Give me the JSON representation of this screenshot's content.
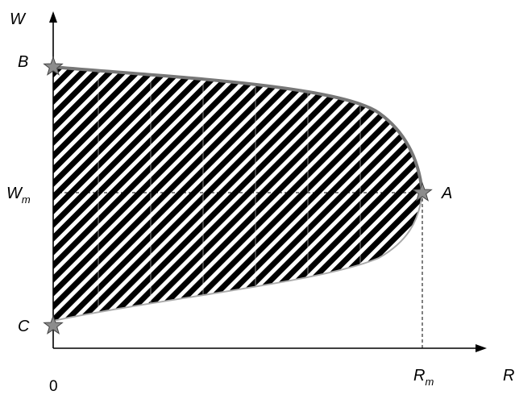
{
  "axes": {
    "y_label": "W",
    "x_label": "R",
    "origin_label": "0"
  },
  "ticks": {
    "y_mid": {
      "main": "W",
      "sub": "m"
    },
    "x_mid": {
      "main": "R",
      "sub": "m"
    }
  },
  "points": {
    "b": "B",
    "a": "A",
    "c": "C"
  },
  "colors": {
    "hatch": "#000000",
    "boundary_upper": "#777777",
    "boundary_lower": "#aaaaaa",
    "star_fill": "#8c8c8c",
    "star_stroke": "#444444"
  }
}
